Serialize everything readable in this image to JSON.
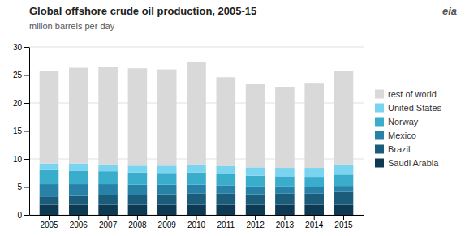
{
  "chart_data": {
    "type": "bar",
    "title": "Global offshore crude oil production, 2005-15",
    "subtitle": "millon barrels per day",
    "annotations": [
      "eia"
    ],
    "categories": [
      "2005",
      "2006",
      "2007",
      "2008",
      "2009",
      "2010",
      "2011",
      "2012",
      "2013",
      "2014",
      "2015"
    ],
    "series": [
      {
        "name": "Saudi Arabia",
        "color": "#0d3a52",
        "values": [
          1.8,
          1.8,
          1.8,
          1.8,
          1.8,
          1.8,
          1.8,
          1.8,
          1.8,
          1.8,
          1.8
        ]
      },
      {
        "name": "Brazil",
        "color": "#1a5c7a",
        "values": [
          1.5,
          1.6,
          1.7,
          1.8,
          1.9,
          2.0,
          2.0,
          1.9,
          2.0,
          2.0,
          2.3
        ]
      },
      {
        "name": "Mexico",
        "color": "#2882a8",
        "values": [
          2.2,
          2.1,
          2.0,
          1.8,
          1.7,
          1.6,
          1.5,
          1.4,
          1.3,
          1.2,
          1.1
        ]
      },
      {
        "name": "Norway",
        "color": "#3aaccc",
        "values": [
          2.5,
          2.4,
          2.3,
          2.2,
          2.1,
          2.2,
          2.0,
          1.9,
          1.8,
          1.8,
          2.0
        ]
      },
      {
        "name": "United States",
        "color": "#7ad4f0",
        "values": [
          1.2,
          1.3,
          1.2,
          1.2,
          1.3,
          1.4,
          1.4,
          1.5,
          1.5,
          1.6,
          1.8
        ]
      },
      {
        "name": "rest of world",
        "color": "#d9d9d9",
        "values": [
          16.5,
          17.1,
          17.4,
          17.4,
          17.2,
          18.4,
          15.9,
          14.9,
          14.5,
          15.2,
          16.8
        ]
      }
    ],
    "stacked": true,
    "ylim": [
      0,
      30
    ],
    "yticks": [
      0,
      5,
      10,
      15,
      20,
      25,
      30
    ],
    "grid": true,
    "legend": "right"
  }
}
